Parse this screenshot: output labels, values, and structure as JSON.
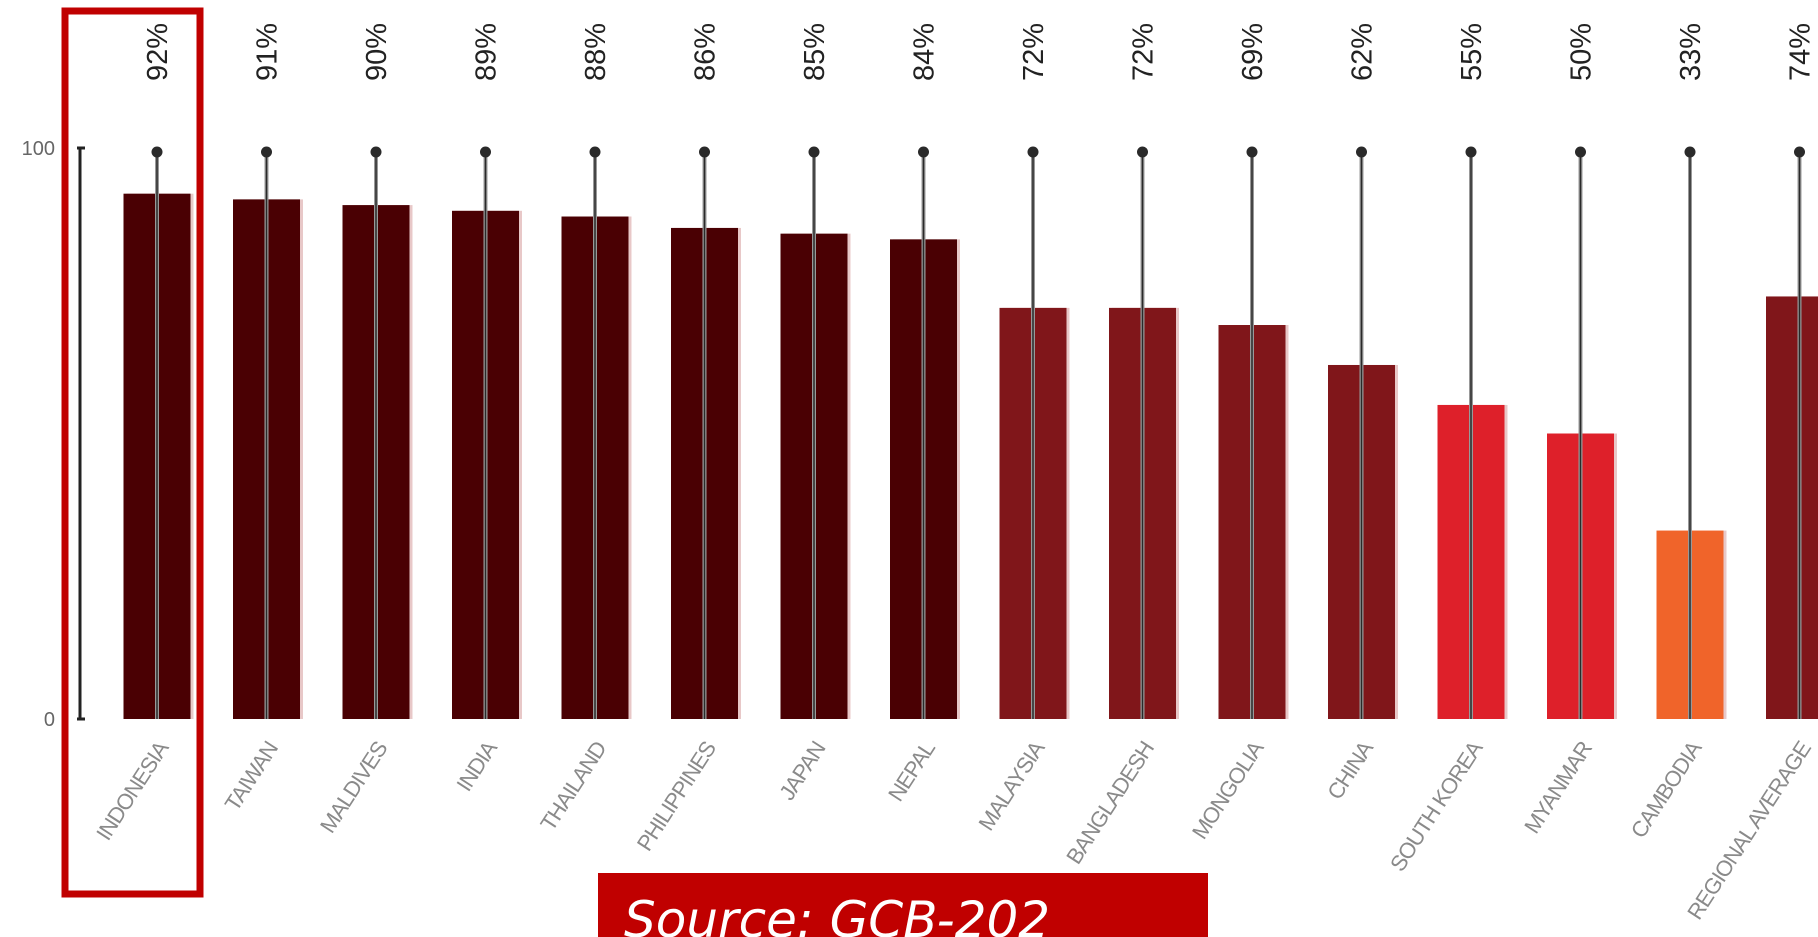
{
  "chart_data": {
    "type": "bar",
    "title": "",
    "xlabel": "",
    "ylabel": "",
    "ylim": [
      0,
      100
    ],
    "y_ticks": [
      "100",
      "0"
    ],
    "categories": [
      "INDONESIA",
      "TAIWAN",
      "MALDIVES",
      "INDIA",
      "THAILAND",
      "PHILIPPINES",
      "JAPAN",
      "NEPAL",
      "MALAYSIA",
      "BANGLADESH",
      "MONGOLIA",
      "CHINA",
      "SOUTH KOREA",
      "MYANMAR",
      "CAMBODIA",
      "REGIONAL AVERAGE"
    ],
    "values": [
      92,
      91,
      90,
      89,
      88,
      86,
      85,
      84,
      72,
      72,
      69,
      62,
      55,
      50,
      33,
      74
    ],
    "value_labels": [
      "92%",
      "91%",
      "90%",
      "89%",
      "88%",
      "86%",
      "85%",
      "84%",
      "72%",
      "72%",
      "69%",
      "62%",
      "55%",
      "50%",
      "33%",
      "74%"
    ],
    "bar_colors": [
      "#4a0003",
      "#4a0003",
      "#4a0003",
      "#4a0003",
      "#4a0003",
      "#4a0003",
      "#4a0003",
      "#4a0003",
      "#80161a",
      "#80161a",
      "#80161a",
      "#80161a",
      "#de202a",
      "#de202a",
      "#f0642a",
      "#80161a"
    ],
    "highlighted_category": "INDONESIA",
    "highlight_color": "#c00000",
    "grid": false,
    "legend": "none"
  },
  "source_banner": {
    "text": "Source: GCB-202"
  }
}
